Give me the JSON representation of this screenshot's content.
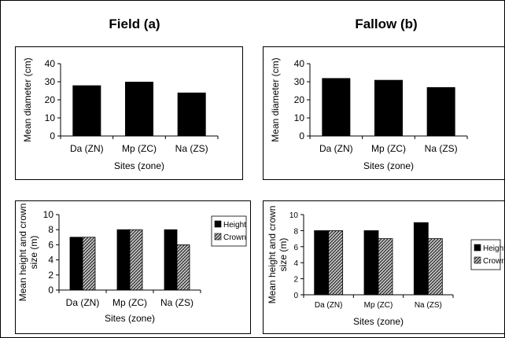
{
  "titles": {
    "left": "Field (a)",
    "right": "Fallow (b)"
  },
  "colors": {
    "height": "#000000",
    "crown_pattern": "crosshatch-grey",
    "frame": "#000000"
  },
  "chart_data": [
    {
      "type": "bar",
      "panel": "field-diameter",
      "categories": [
        "Da (ZN)",
        "Mp (ZC)",
        "Na (ZS)"
      ],
      "values": [
        28,
        30,
        24
      ],
      "xlabel": "Sites (zone)",
      "ylabel": "Mean diameter (cm)",
      "ylim": [
        0,
        40
      ],
      "yticks": [
        0,
        10,
        20,
        30,
        40
      ],
      "grid": false
    },
    {
      "type": "bar",
      "panel": "fallow-diameter",
      "categories": [
        "Da (ZN)",
        "Mp (ZC)",
        "Na (ZS)"
      ],
      "values": [
        32,
        31,
        27
      ],
      "xlabel": "Sites (zone)",
      "ylabel": "Mean diameter (cm)",
      "ylim": [
        0,
        40
      ],
      "yticks": [
        0,
        10,
        20,
        30,
        40
      ],
      "grid": false
    },
    {
      "type": "bar",
      "panel": "field-height",
      "categories": [
        "Da (ZN)",
        "Mp (ZC)",
        "Na (ZS)"
      ],
      "series": [
        {
          "name": "Height",
          "values": [
            7,
            8,
            8
          ]
        },
        {
          "name": "Crown",
          "values": [
            7,
            8,
            6
          ]
        }
      ],
      "xlabel": "Sites (zone)",
      "ylabel": "Mean height and crown size (m)",
      "ylim": [
        0,
        10
      ],
      "yticks": [
        0,
        2,
        4,
        6,
        8,
        10
      ],
      "legend": "right",
      "grid": false
    },
    {
      "type": "bar",
      "panel": "fallow-height",
      "categories": [
        "Da (ZN)",
        "Mp (ZC)",
        "Na (ZS)"
      ],
      "series": [
        {
          "name": "Height",
          "values": [
            8,
            8,
            9
          ]
        },
        {
          "name": "Crown",
          "values": [
            8,
            7,
            7
          ]
        }
      ],
      "xlabel": "Sites (zone)",
      "ylabel": "Mean height and crown size (m)",
      "ylim": [
        0,
        10
      ],
      "yticks": [
        0,
        2,
        4,
        6,
        8,
        10
      ],
      "legend": "right",
      "grid": false
    }
  ]
}
